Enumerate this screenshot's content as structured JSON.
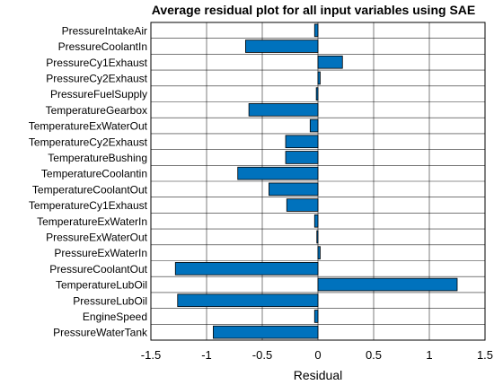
{
  "chart_data": {
    "type": "bar",
    "orientation": "horizontal",
    "title": "Average residual plot for all input variables using SAE",
    "xlabel": "Residual",
    "ylabel": "",
    "xlim": [
      -1.5,
      1.5
    ],
    "xticks": [
      -1.5,
      -1,
      -0.5,
      0,
      0.5,
      1,
      1.5
    ],
    "xtick_labels": [
      "-1.5",
      "-1",
      "-0.5",
      "0",
      "0.5",
      "1",
      "1.5"
    ],
    "grid": true,
    "bar_color": "#0072BD",
    "categories": [
      "PressureIntakeAir",
      "PressureCoolantIn",
      "PressureCy1Exhaust",
      "PressureCy2Exhaust",
      "PressureFuelSupply",
      "TemperatureGearbox",
      "TemperatureExWaterOut",
      "TemperatureCy2Exhaust",
      "TemperatureBushing",
      "TemperatureCoolantin",
      "TemperatureCoolantOut",
      "TemperatureCy1Exhaust",
      "TemperatureExWaterIn",
      "PressureExWaterOut",
      "PressureExWaterIn",
      "PressureCoolantOut",
      "TemperatureLubOil",
      "PressureLubOil",
      "EngineSpeed",
      "PressureWaterTank"
    ],
    "values": [
      -0.03,
      -0.65,
      0.22,
      0.02,
      -0.015,
      -0.62,
      -0.07,
      -0.29,
      -0.29,
      -0.72,
      -0.44,
      -0.28,
      -0.03,
      -0.01,
      0.02,
      -1.28,
      1.25,
      -1.26,
      -0.03,
      -0.94
    ]
  }
}
